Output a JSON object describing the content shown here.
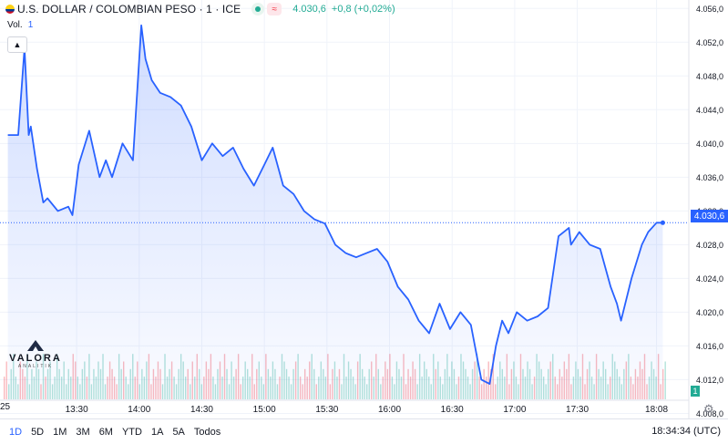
{
  "header": {
    "symbol_title": "U.S. DOLLAR / COLOMBIAN PESO · 1 · ICE",
    "price": "4.030,6",
    "change": "+0,8 (+0,02%)",
    "volume_label": "Vol.",
    "volume_value": "1"
  },
  "price_tag": "4.030,6",
  "volume_tag": "1",
  "cut_label": "25",
  "logo": {
    "name": "VALORA",
    "sub": "ANALITIK"
  },
  "footer": {
    "ranges": [
      "1D",
      "5D",
      "1M",
      "3M",
      "6M",
      "YTD",
      "1A",
      "5A",
      "Todos"
    ],
    "active_range": "1D",
    "clock": "18:34:34 (UTC)"
  },
  "colors": {
    "line": "#2962ff",
    "up": "#22ab94",
    "down": "#f23645"
  },
  "chart_data": {
    "type": "area",
    "x_ticks": [
      "13:30",
      "14:00",
      "14:30",
      "15:00",
      "15:30",
      "16:00",
      "16:30",
      "17:00",
      "17:30",
      "18:08"
    ],
    "y_ticks": [
      4056.0,
      4052.0,
      4048.0,
      4044.0,
      4040.0,
      4036.0,
      4032.0,
      4028.0,
      4024.0,
      4020.0,
      4016.0,
      4012.0,
      4008.0
    ],
    "ylim": [
      4007.4,
      4057.0
    ],
    "last_price": 4030.6,
    "series": [
      {
        "x": [
          "12:57",
          "13:02",
          "13:05",
          "13:07",
          "13:08",
          "13:11",
          "13:14",
          "13:16",
          "13:21",
          "13:26",
          "13:28",
          "13:31",
          "13:36",
          "13:41",
          "13:44",
          "13:47",
          "13:52",
          "13:57",
          "14:01",
          "14:03",
          "14:06",
          "14:10",
          "14:15",
          "14:20",
          "14:25",
          "14:30",
          "14:35",
          "14:40",
          "14:45",
          "14:50",
          "14:55",
          "15:00",
          "15:04",
          "15:09",
          "15:14",
          "15:19",
          "15:24",
          "15:29",
          "15:34",
          "15:39",
          "15:44",
          "15:49",
          "15:54",
          "15:59",
          "16:04",
          "16:09",
          "16:14",
          "16:19",
          "16:24",
          "16:29",
          "16:34",
          "16:39",
          "16:44",
          "16:48",
          "16:51",
          "16:54",
          "16:57",
          "17:01",
          "17:06",
          "17:11",
          "17:16",
          "17:21",
          "17:26",
          "17:27",
          "17:31",
          "17:36",
          "17:41",
          "17:46",
          "17:49",
          "17:51",
          "17:56",
          "18:01",
          "18:04",
          "18:08",
          "18:11"
        ],
        "values": [
          4041.0,
          4041.0,
          4051.3,
          4041.0,
          4042.0,
          4037.0,
          4033.0,
          4033.5,
          4032.0,
          4032.5,
          4031.5,
          4037.5,
          4041.5,
          4036.0,
          4038.0,
          4036.0,
          4040.0,
          4038.0,
          4054.0,
          4050.0,
          4047.5,
          4046.0,
          4045.5,
          4044.5,
          4042.0,
          4038.0,
          4040.0,
          4038.5,
          4039.5,
          4037.0,
          4035.0,
          4037.5,
          4039.5,
          4035.0,
          4034.0,
          4032.0,
          4031.0,
          4030.5,
          4028.0,
          4027.0,
          4026.5,
          4027.0,
          4027.5,
          4026.0,
          4023.0,
          4021.5,
          4019.0,
          4017.5,
          4021.0,
          4018.0,
          4020.0,
          4018.5,
          4012.0,
          4011.5,
          4016.0,
          4019.0,
          4017.5,
          4020.0,
          4019.0,
          4019.5,
          4020.5,
          4029.0,
          4030.0,
          4028.0,
          4029.5,
          4028.0,
          4027.5,
          4023.0,
          4021.0,
          4019.0,
          4024.0,
          4028.0,
          4029.5,
          4030.6,
          4030.6
        ]
      }
    ],
    "volume": {
      "ylim": [
        0,
        10
      ],
      "bars": [
        3,
        5,
        2,
        4,
        6,
        3,
        2,
        5,
        4,
        3,
        6,
        2,
        4,
        3,
        5,
        4,
        2,
        6,
        3,
        4,
        5,
        2,
        3,
        6,
        4,
        3,
        5,
        2,
        4,
        3,
        6,
        5,
        3,
        2,
        4,
        5,
        3,
        6,
        2,
        4,
        3,
        5,
        4,
        6,
        2,
        3,
        5,
        4,
        3,
        2,
        6,
        4,
        5,
        3,
        2,
        4,
        6,
        3,
        5,
        2,
        4,
        3,
        5,
        6,
        2,
        4,
        3,
        5,
        4,
        2,
        6,
        3,
        4,
        5,
        3,
        2,
        4,
        6,
        5,
        3,
        4,
        2,
        5,
        3,
        6,
        4,
        2,
        3,
        5,
        4,
        6,
        3,
        2,
        4,
        5,
        3,
        6,
        4,
        2,
        5,
        3,
        4,
        6,
        2,
        3,
        5,
        4,
        3,
        6,
        2,
        4,
        5,
        3,
        2,
        6,
        4,
        3,
        5,
        4,
        2,
        3,
        6,
        5,
        4,
        3,
        2,
        4,
        5,
        6,
        3,
        2,
        4,
        3,
        5,
        6,
        4,
        2,
        3,
        5,
        4,
        3,
        6,
        2,
        4,
        5,
        3,
        4,
        2,
        6,
        3,
        5,
        4,
        3,
        2,
        5,
        6,
        4,
        3,
        2,
        4,
        5,
        3,
        6,
        4,
        2,
        3,
        5,
        4,
        6,
        3,
        2,
        5,
        4,
        3,
        6,
        2,
        4,
        3,
        5,
        4,
        2,
        6,
        3,
        5,
        4,
        3,
        2,
        6,
        4,
        5,
        3,
        2,
        4,
        6,
        3,
        5,
        4,
        2,
        3,
        6,
        5,
        4,
        3,
        2,
        4,
        5,
        6,
        3,
        2,
        4,
        3,
        5,
        4,
        6,
        2,
        3,
        5,
        4,
        3,
        6,
        2,
        4,
        5,
        3,
        2,
        6,
        4,
        3,
        5,
        4,
        2,
        3,
        6,
        5,
        4,
        3,
        2,
        4,
        5,
        6,
        3,
        2,
        4,
        3,
        5,
        4,
        6,
        2,
        3,
        5,
        4,
        3,
        6,
        2,
        4,
        5,
        3,
        2,
        6,
        4,
        3,
        5,
        4,
        2,
        3,
        6,
        5,
        4,
        3,
        2,
        4,
        5,
        6,
        3,
        2,
        4,
        3,
        5,
        4,
        6,
        2,
        3,
        5,
        4,
        3,
        6,
        2,
        4,
        5
      ]
    }
  }
}
